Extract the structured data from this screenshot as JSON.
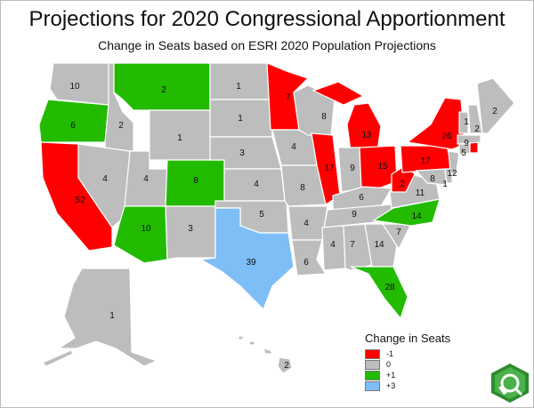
{
  "title": "Projections for 2020 Congressional Apportionment",
  "subtitle": "Change in Seats based on ESRI 2020 Population Projections",
  "colors": {
    "minus1": "#ff0000",
    "zero": "#bdbdbd",
    "plus1": "#22bb00",
    "plus3": "#7dbef6"
  },
  "states": [
    {
      "name": "Washington",
      "seats": "10",
      "change": "0"
    },
    {
      "name": "Oregon",
      "seats": "6",
      "change": "+1"
    },
    {
      "name": "California",
      "seats": "52",
      "change": "-1"
    },
    {
      "name": "Idaho",
      "seats": "2",
      "change": "0"
    },
    {
      "name": "Nevada",
      "seats": "4",
      "change": "0"
    },
    {
      "name": "Utah",
      "seats": "4",
      "change": "0"
    },
    {
      "name": "Arizona",
      "seats": "10",
      "change": "+1"
    },
    {
      "name": "Montana",
      "seats": "2",
      "change": "+1"
    },
    {
      "name": "Wyoming",
      "seats": "1",
      "change": "0"
    },
    {
      "name": "Colorado",
      "seats": "8",
      "change": "+1"
    },
    {
      "name": "New Mexico",
      "seats": "3",
      "change": "0"
    },
    {
      "name": "North Dakota",
      "seats": "1",
      "change": "0"
    },
    {
      "name": "South Dakota",
      "seats": "1",
      "change": "0"
    },
    {
      "name": "Nebraska",
      "seats": "3",
      "change": "0"
    },
    {
      "name": "Kansas",
      "seats": "4",
      "change": "0"
    },
    {
      "name": "Oklahoma",
      "seats": "5",
      "change": "0"
    },
    {
      "name": "Texas",
      "seats": "39",
      "change": "+3"
    },
    {
      "name": "Minnesota",
      "seats": "7",
      "change": "-1"
    },
    {
      "name": "Iowa",
      "seats": "4",
      "change": "0"
    },
    {
      "name": "Missouri",
      "seats": "8",
      "change": "0"
    },
    {
      "name": "Arkansas",
      "seats": "4",
      "change": "0"
    },
    {
      "name": "Louisiana",
      "seats": "6",
      "change": "0"
    },
    {
      "name": "Wisconsin",
      "seats": "8",
      "change": "0"
    },
    {
      "name": "Illinois",
      "seats": "17",
      "change": "-1"
    },
    {
      "name": "Michigan",
      "seats": "13",
      "change": "-1"
    },
    {
      "name": "Indiana",
      "seats": "9",
      "change": "0"
    },
    {
      "name": "Ohio",
      "seats": "15",
      "change": "-1"
    },
    {
      "name": "Kentucky",
      "seats": "6",
      "change": "0"
    },
    {
      "name": "Tennessee",
      "seats": "9",
      "change": "0"
    },
    {
      "name": "Mississippi",
      "seats": "4",
      "change": "0"
    },
    {
      "name": "Alabama",
      "seats": "7",
      "change": "0"
    },
    {
      "name": "Georgia",
      "seats": "14",
      "change": "0"
    },
    {
      "name": "Florida",
      "seats": "28",
      "change": "+1"
    },
    {
      "name": "South Carolina",
      "seats": "7",
      "change": "0"
    },
    {
      "name": "North Carolina",
      "seats": "14",
      "change": "+1"
    },
    {
      "name": "Virginia",
      "seats": "11",
      "change": "0"
    },
    {
      "name": "West Virginia",
      "seats": "2",
      "change": "-1"
    },
    {
      "name": "Pennsylvania",
      "seats": "17",
      "change": "-1"
    },
    {
      "name": "New York",
      "seats": "26",
      "change": "-1"
    },
    {
      "name": "Maryland",
      "seats": "8",
      "change": "0"
    },
    {
      "name": "Delaware",
      "seats": "1",
      "change": "0"
    },
    {
      "name": "New Jersey",
      "seats": "12",
      "change": "0"
    },
    {
      "name": "Connecticut",
      "seats": "5",
      "change": "0"
    },
    {
      "name": "Rhode Island",
      "seats": "",
      "change": "-1"
    },
    {
      "name": "Massachusetts",
      "seats": "9",
      "change": "0"
    },
    {
      "name": "Vermont",
      "seats": "1",
      "change": "0"
    },
    {
      "name": "New Hampshire",
      "seats": "2",
      "change": "0"
    },
    {
      "name": "Maine",
      "seats": "2",
      "change": "0"
    },
    {
      "name": "Alaska",
      "seats": "1",
      "change": "0"
    },
    {
      "name": "Hawaii",
      "seats": "2",
      "change": "0"
    }
  ],
  "legend": {
    "title": "Change in Seats",
    "items": [
      {
        "label": "-1",
        "color": "#ff0000"
      },
      {
        "label": "0",
        "color": "#bdbdbd"
      },
      {
        "label": "+1",
        "color": "#22bb00"
      },
      {
        "label": "+3",
        "color": "#7dbef6"
      }
    ]
  },
  "logo_icon": "esri-logo-icon"
}
